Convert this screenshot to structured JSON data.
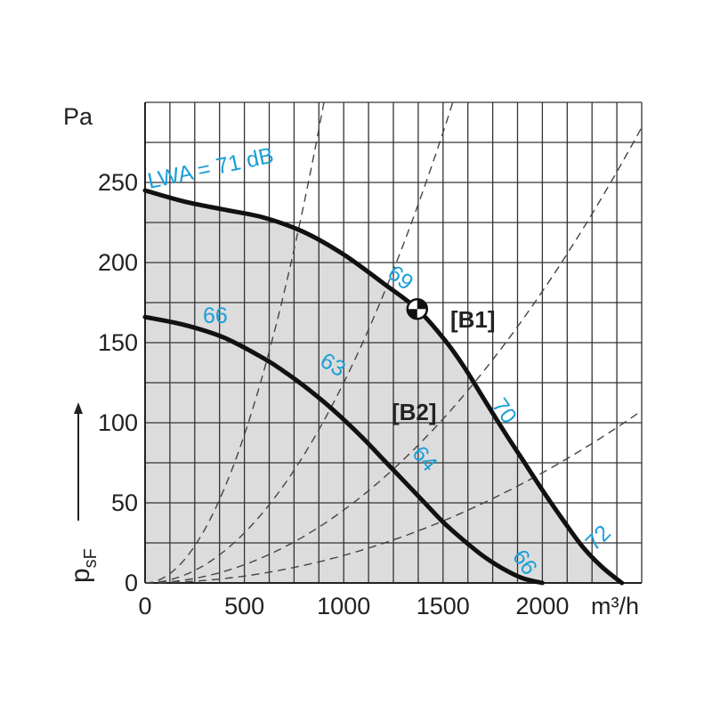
{
  "chart_data": {
    "type": "line",
    "ylabel": "psF",
    "yunit": "Pa",
    "xunit": "m³/h",
    "xlim": [
      0,
      2500
    ],
    "ylim": [
      0,
      300
    ],
    "xticks": [
      0,
      500,
      1000,
      1500,
      2000
    ],
    "yticks": [
      0,
      50,
      100,
      150,
      200,
      250
    ],
    "grid": true,
    "series": [
      {
        "name": "[B1]",
        "x": [
          0,
          200,
          400,
          600,
          800,
          1000,
          1200,
          1370,
          1500,
          1600,
          1700,
          1800,
          1900,
          2000,
          2100,
          2200,
          2300,
          2400
        ],
        "y": [
          245,
          238,
          233,
          228,
          219,
          205,
          187,
          171,
          153,
          136,
          116,
          96,
          77,
          58,
          40,
          23,
          10,
          0
        ]
      },
      {
        "name": "[B2]",
        "x": [
          0,
          200,
          400,
          600,
          700,
          800,
          900,
          1000,
          1100,
          1200,
          1300,
          1400,
          1500,
          1600,
          1700,
          1800,
          1900,
          2000
        ],
        "y": [
          166,
          161,
          153,
          140,
          132,
          123,
          113,
          102,
          90,
          77,
          64,
          51,
          38,
          27,
          17,
          9,
          3,
          0
        ]
      }
    ],
    "system_curves_k": [
      0.00037,
      0.000125,
      4.55e-05,
      1.72e-05
    ],
    "operating_point": {
      "label": "[B1]",
      "x": 1370,
      "y": 171
    },
    "annotations": [
      {
        "text": "LWA = 71 dB"
      },
      {
        "text": "69"
      },
      {
        "text": "70"
      },
      {
        "text": "72"
      },
      {
        "text": "66"
      },
      {
        "text": "63"
      },
      {
        "text": "64"
      },
      {
        "text": "66"
      }
    ]
  }
}
